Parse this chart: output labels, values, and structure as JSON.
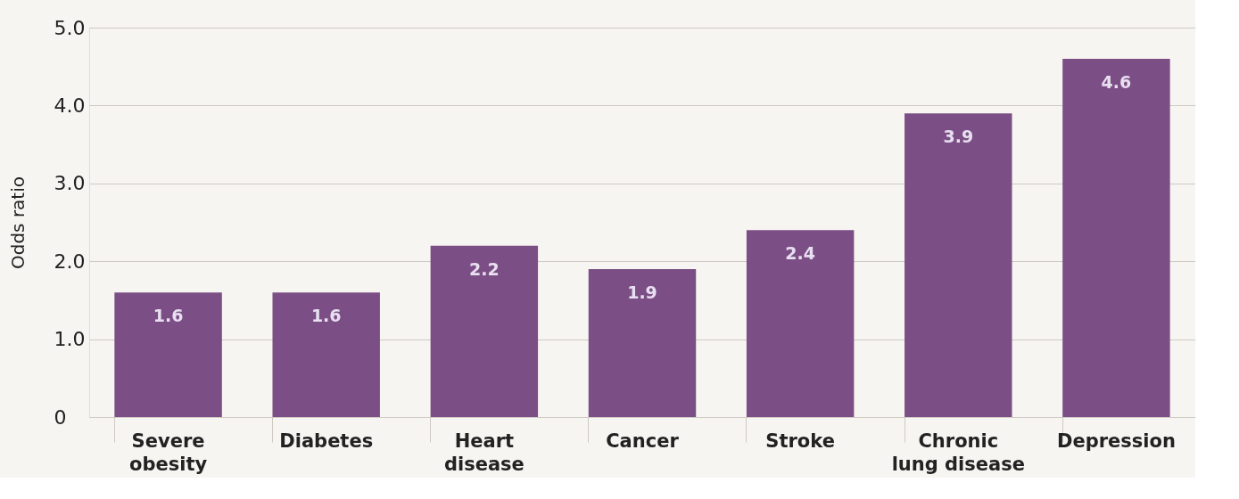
{
  "chart_data": {
    "type": "bar",
    "ylabel": "Odds ratio",
    "categories": [
      "Severe obesity",
      "Diabetes",
      "Heart disease",
      "Cancer",
      "Stroke",
      "Chronic lung disease",
      "Depression"
    ],
    "values": [
      1.6,
      1.6,
      2.2,
      1.9,
      2.4,
      3.9,
      4.6
    ],
    "color": "#7b4f85",
    "ylim": [
      0,
      5
    ],
    "yticks": [
      0,
      {
        "value": 1,
        "label": "1.0"
      },
      {
        "value": 2,
        "label": "2.0"
      },
      {
        "value": 3,
        "label": "3.0"
      },
      {
        "value": 4,
        "label": "4.0"
      },
      {
        "value": 5,
        "label": "5.0"
      }
    ],
    "grid": "y",
    "data_labels": true
  }
}
